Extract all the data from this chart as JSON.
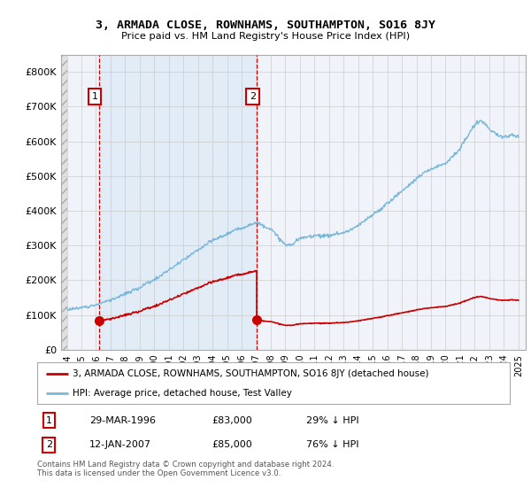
{
  "title": "3, ARMADA CLOSE, ROWNHAMS, SOUTHAMPTON, SO16 8JY",
  "subtitle": "Price paid vs. HM Land Registry's House Price Index (HPI)",
  "ylim": [
    0,
    850000
  ],
  "yticks": [
    0,
    100000,
    200000,
    300000,
    400000,
    500000,
    600000,
    700000,
    800000
  ],
  "ytick_labels": [
    "£0",
    "£100K",
    "£200K",
    "£300K",
    "£400K",
    "£500K",
    "£600K",
    "£700K",
    "£800K"
  ],
  "hpi_color": "#7ab8d9",
  "price_color": "#cc0000",
  "grid_color": "#cccccc",
  "background_color": "#ffffff",
  "plot_bg_color": "#f0f4fa",
  "hatch_bg_color": "#e0e0e0",
  "shade_color": "#ddeaf5",
  "sale1_date_num": 1996.21,
  "sale1_price": 83000,
  "sale1_label": "1",
  "sale2_date_num": 2007.04,
  "sale2_price": 85000,
  "sale2_label": "2",
  "legend_line1": "3, ARMADA CLOSE, ROWNHAMS, SOUTHAMPTON, SO16 8JY (detached house)",
  "legend_line2": "HPI: Average price, detached house, Test Valley",
  "table_row1": [
    "1",
    "29-MAR-1996",
    "£83,000",
    "29% ↓ HPI"
  ],
  "table_row2": [
    "2",
    "12-JAN-2007",
    "£85,000",
    "76% ↓ HPI"
  ],
  "footnote": "Contains HM Land Registry data © Crown copyright and database right 2024.\nThis data is licensed under the Open Government Licence v3.0.",
  "xmin": 1993.6,
  "xmax": 2025.5,
  "xticks": [
    1994,
    1995,
    1996,
    1997,
    1998,
    1999,
    2000,
    2001,
    2002,
    2003,
    2004,
    2005,
    2006,
    2007,
    2008,
    2009,
    2010,
    2011,
    2012,
    2013,
    2014,
    2015,
    2016,
    2017,
    2018,
    2019,
    2020,
    2021,
    2022,
    2023,
    2024,
    2025
  ]
}
